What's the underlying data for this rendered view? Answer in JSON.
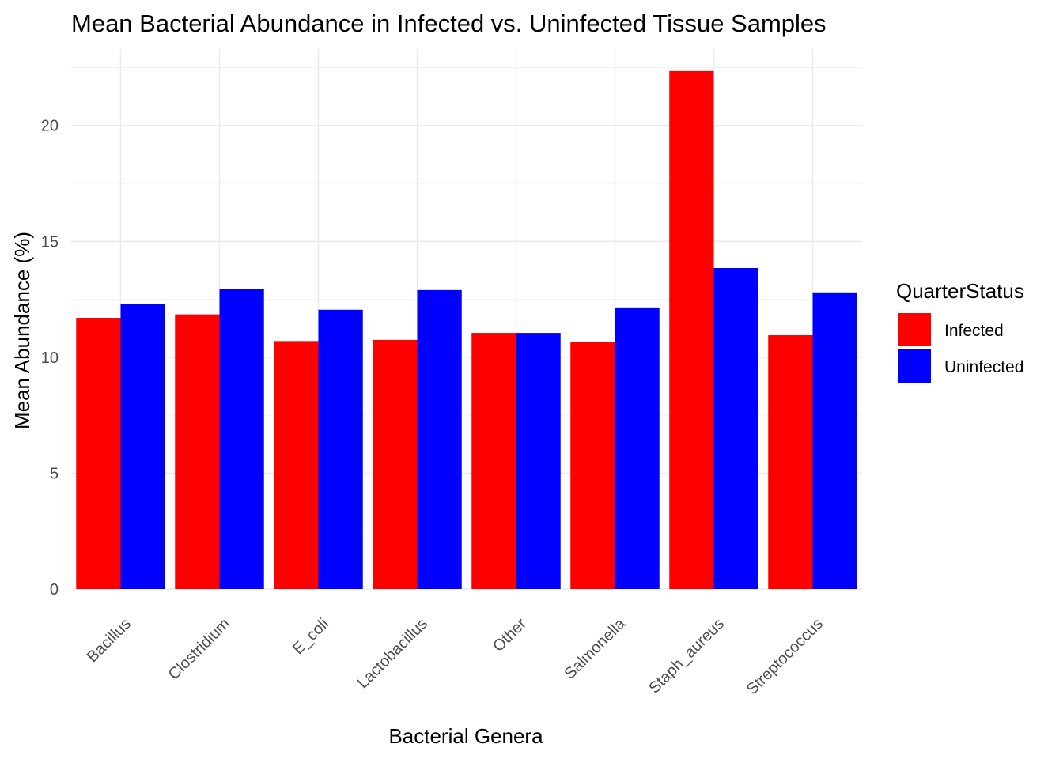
{
  "chart_data": {
    "type": "bar",
    "title": "Mean Bacterial Abundance in Infected vs. Uninfected Tissue Samples",
    "xlabel": "Bacterial Genera",
    "ylabel": "Mean Abundance (%)",
    "categories": [
      "Bacillus",
      "Clostridium",
      "E_coli",
      "Lactobacillus",
      "Other",
      "Salmonella",
      "Staph_aureus",
      "Streptococcus"
    ],
    "series": [
      {
        "name": "Infected",
        "color": "#ff0000",
        "values": [
          11.7,
          11.85,
          10.7,
          10.75,
          11.05,
          10.65,
          22.35,
          10.95
        ]
      },
      {
        "name": "Uninfected",
        "color": "#0000ff",
        "values": [
          12.3,
          12.95,
          12.05,
          12.9,
          11.05,
          12.15,
          13.85,
          12.8
        ]
      }
    ],
    "ylim": [
      0,
      23.3
    ],
    "yticks": [
      0,
      5,
      10,
      15,
      20
    ],
    "grid": true,
    "legend": {
      "title": "QuarterStatus",
      "position": "right"
    }
  }
}
